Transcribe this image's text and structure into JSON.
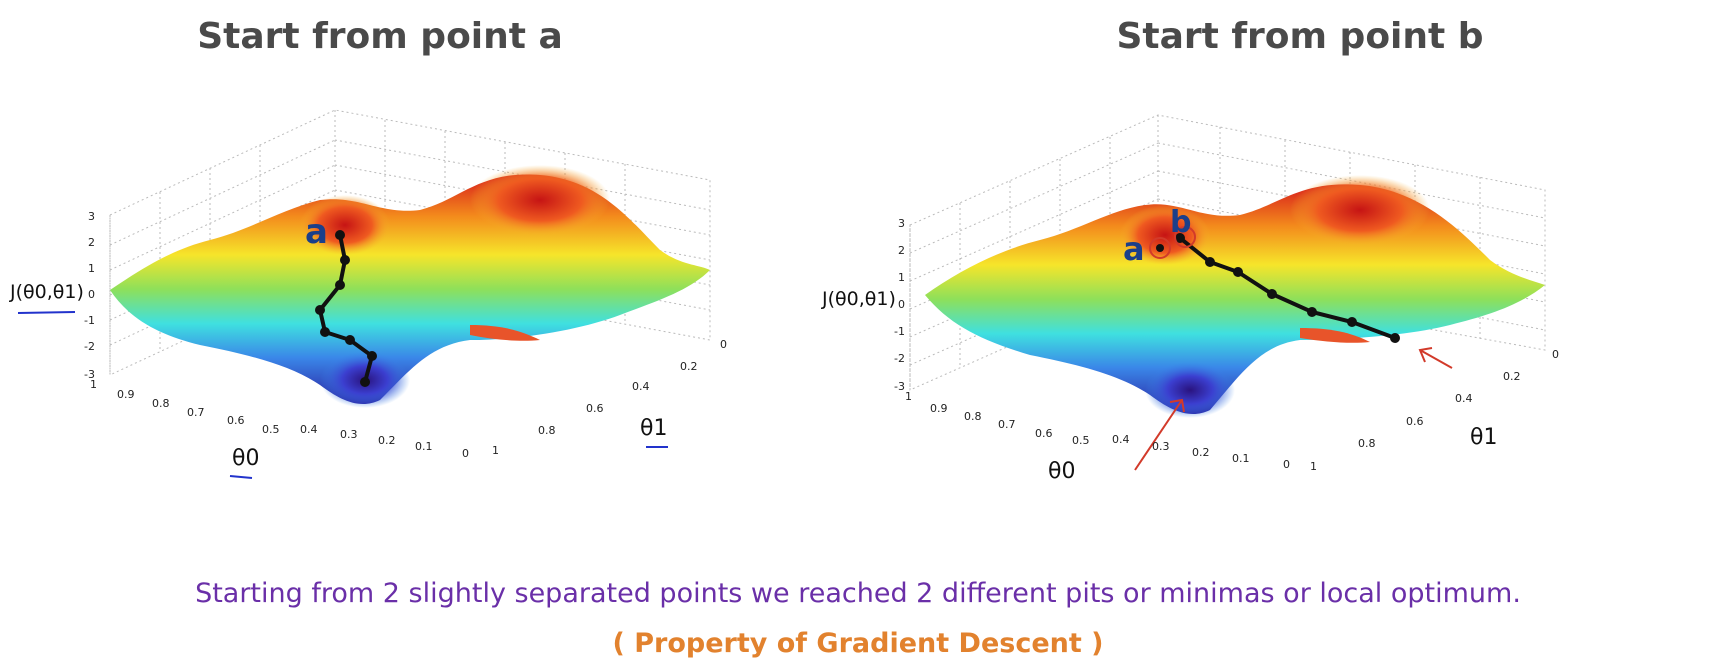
{
  "titles": {
    "left": "Start from point a",
    "right": "Start from point b"
  },
  "plot_left": {
    "z_ticks": [
      "3",
      "2",
      "1",
      "0",
      "-1",
      "-2",
      "-3"
    ],
    "x_ticks": [
      "0.9",
      "0.8",
      "0.7",
      "0.6",
      "0.5",
      "0.4",
      "0.3",
      "0.2",
      "0.1",
      "0"
    ],
    "y_ticks": [
      "0",
      "0.2",
      "0.4",
      "0.6",
      "0.8",
      "1"
    ],
    "z_label": "J(θ0,θ1)",
    "x_label": "θ0",
    "y_label": "θ1",
    "marker": "a",
    "x_tick_first": "1"
  },
  "plot_right": {
    "z_ticks": [
      "3",
      "2",
      "1",
      "0",
      "-1",
      "-2",
      "-3"
    ],
    "x_ticks": [
      "0.9",
      "0.8",
      "0.7",
      "0.6",
      "0.5",
      "0.4",
      "0.3",
      "0.2",
      "0.1",
      "0"
    ],
    "y_ticks": [
      "0",
      "0.2",
      "0.4",
      "0.6",
      "0.8",
      "1"
    ],
    "z_label": "J(θ0,θ1)",
    "x_label": "θ0",
    "y_label": "θ1",
    "marker_a": "a",
    "marker_b": "b",
    "x_tick_first": "1"
  },
  "caption": {
    "main": "Starting from 2 slightly separated points we reached 2 different pits or minimas or local optimum.",
    "sub": "( Property of Gradient Descent )"
  }
}
